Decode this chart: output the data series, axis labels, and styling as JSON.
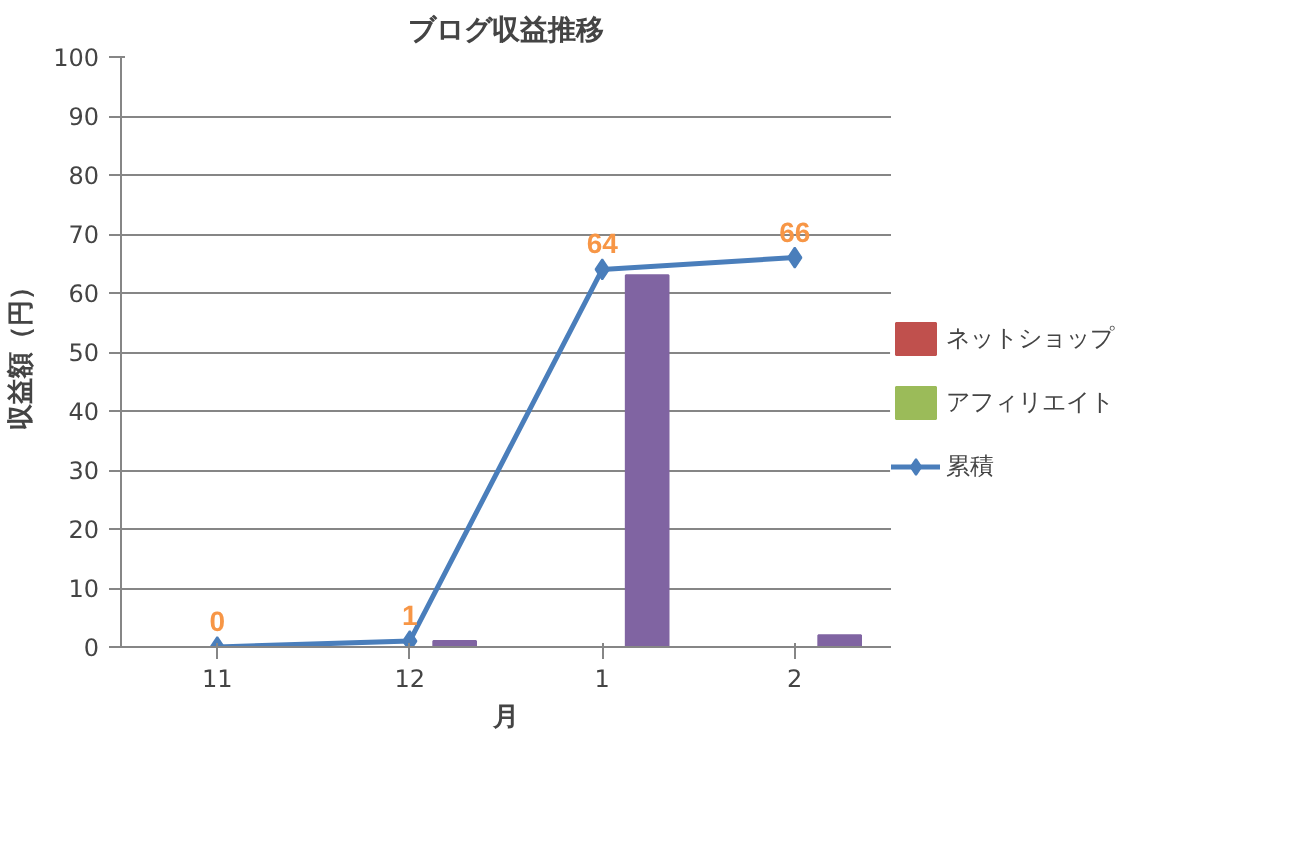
{
  "chart_data": {
    "type": "bar",
    "title": "ブログ収益推移",
    "xlabel": "月",
    "ylabel": "収益額（円）",
    "categories": [
      "11",
      "12",
      "1",
      "2"
    ],
    "series": [
      {
        "name": "ネットショップ",
        "color": "#c0504d",
        "values": [
          null,
          null,
          null,
          null
        ]
      },
      {
        "name": "アフィリエイト",
        "color": "#9bbb59",
        "values": [
          null,
          null,
          null,
          null
        ]
      },
      {
        "color": "#8064a2",
        "values": [
          0,
          1,
          63,
          2
        ]
      },
      {
        "name": "累積",
        "type": "line",
        "color": "#4a7ebb",
        "marker": "diamond",
        "values": [
          0,
          1,
          64,
          66
        ],
        "value_labels": [
          "0",
          "1",
          "64",
          "66"
        ]
      }
    ],
    "ylim": [
      0,
      100
    ],
    "yticks": [
      0,
      10,
      20,
      30,
      40,
      50,
      60,
      70,
      80,
      90,
      100
    ],
    "grid": "y",
    "legend": "right"
  }
}
